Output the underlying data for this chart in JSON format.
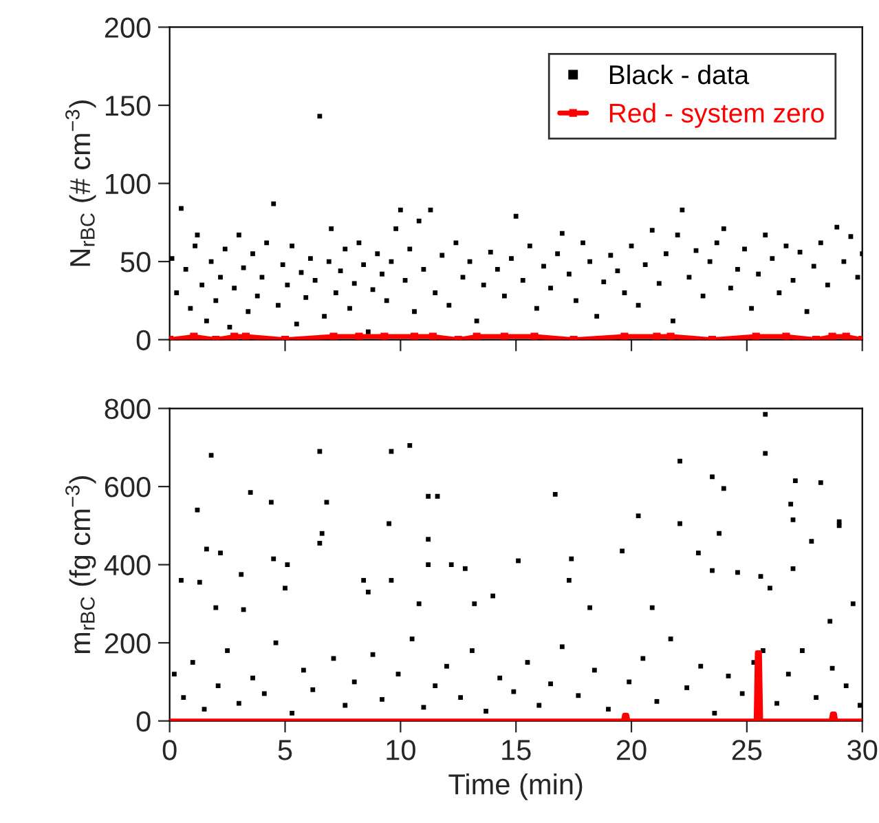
{
  "chart_data": [
    {
      "type": "scatter",
      "ylabel": "N$_{rBC}$ (# cm$^{−3}$)",
      "xlim": [
        0,
        30
      ],
      "xticks": [
        0,
        5,
        10,
        15,
        20,
        25,
        30
      ],
      "ylim": [
        0,
        200
      ],
      "yticks": [
        0,
        50,
        100,
        150,
        200
      ],
      "tick_labels": "y",
      "legend": "top right",
      "series": [
        {
          "name": "Black - data",
          "color": "#000000",
          "marker": "square",
          "x": [
            0.1,
            0.3,
            0.5,
            0.7,
            0.9,
            1.1,
            1.2,
            1.4,
            1.6,
            1.8,
            2.0,
            2.2,
            2.4,
            2.6,
            2.8,
            3.0,
            3.2,
            3.4,
            3.6,
            3.8,
            4.0,
            4.2,
            4.5,
            4.7,
            4.9,
            5.1,
            5.3,
            5.5,
            5.7,
            5.9,
            6.1,
            6.3,
            6.5,
            6.7,
            6.9,
            7.0,
            7.2,
            7.4,
            7.6,
            7.8,
            8.0,
            8.2,
            8.4,
            8.6,
            8.8,
            9.0,
            9.2,
            9.4,
            9.6,
            9.8,
            10.0,
            10.2,
            10.4,
            10.6,
            10.8,
            11.0,
            11.3,
            11.5,
            11.8,
            12.1,
            12.4,
            12.7,
            13.0,
            13.3,
            13.6,
            13.9,
            14.2,
            14.5,
            14.8,
            15.0,
            15.3,
            15.6,
            15.9,
            16.2,
            16.5,
            16.8,
            17.0,
            17.3,
            17.6,
            17.9,
            18.2,
            18.5,
            18.8,
            19.1,
            19.4,
            19.7,
            20.0,
            20.3,
            20.6,
            20.9,
            21.2,
            21.5,
            21.8,
            22.0,
            22.2,
            22.5,
            22.8,
            23.1,
            23.4,
            23.7,
            24.0,
            24.3,
            24.6,
            24.9,
            25.2,
            25.5,
            25.8,
            26.1,
            26.4,
            26.7,
            27.0,
            27.3,
            27.6,
            27.9,
            28.2,
            28.5,
            28.9,
            29.2,
            29.5,
            29.8,
            30.0
          ],
          "values": [
            52,
            30,
            84,
            45,
            20,
            60,
            67,
            35,
            12,
            50,
            25,
            40,
            58,
            8,
            33,
            67,
            46,
            18,
            55,
            28,
            40,
            62,
            87,
            22,
            48,
            35,
            60,
            10,
            43,
            27,
            52,
            38,
            143,
            15,
            50,
            71,
            30,
            44,
            58,
            20,
            36,
            62,
            48,
            5,
            32,
            55,
            42,
            25,
            50,
            71,
            83,
            38,
            58,
            18,
            76,
            45,
            83,
            30,
            54,
            22,
            62,
            40,
            50,
            12,
            35,
            56,
            45,
            28,
            52,
            79,
            38,
            60,
            20,
            47,
            33,
            55,
            68,
            42,
            25,
            62,
            50,
            15,
            37,
            54,
            44,
            30,
            60,
            22,
            48,
            70,
            36,
            55,
            12,
            67,
            83,
            40,
            57,
            28,
            50,
            62,
            71,
            33,
            45,
            58,
            20,
            42,
            67,
            52,
            30,
            60,
            38,
            56,
            18,
            47,
            62,
            35,
            72,
            50,
            66,
            40,
            55
          ]
        },
        {
          "name": "Red - system zero",
          "color": "#ff0000",
          "type": "line",
          "marker": "square",
          "line_style": "solid",
          "x": [
            0,
            1.05,
            2.0,
            2.8,
            3.3,
            5.0,
            7.1,
            8.2,
            9.3,
            10.6,
            11.4,
            12.5,
            13.3,
            14.5,
            15.8,
            17.5,
            19.7,
            21.1,
            21.7,
            23.5,
            25.4,
            26.7,
            28.0,
            28.7,
            29.3,
            30
          ],
          "values": [
            0,
            2,
            0,
            2,
            2,
            0,
            2,
            2,
            2,
            2,
            2,
            0,
            2,
            2,
            2,
            0,
            2,
            2,
            2,
            0,
            2,
            2,
            0,
            2,
            2,
            0
          ]
        }
      ]
    },
    {
      "type": "scatter",
      "ylabel": "m$_{rBC}$ (fg cm$^{−3}$)",
      "xlabel": "Time (min)",
      "xlim": [
        0,
        30
      ],
      "xticks": [
        0,
        5,
        10,
        15,
        20,
        25,
        30
      ],
      "ylim": [
        0,
        800
      ],
      "yticks": [
        0,
        200,
        400,
        600,
        800
      ],
      "series": [
        {
          "color": "#000000",
          "marker": "square",
          "x": [
            1.8,
            1.2,
            1.6,
            2.2,
            3.5,
            3.1,
            4.4,
            4.5,
            5.1,
            6.5,
            6.8,
            6.6,
            6.5,
            9.6,
            10.4,
            9.5,
            9.6,
            11.2,
            11.6,
            11.2,
            11.2,
            12.2,
            12.8,
            15.1,
            16.7,
            17.4,
            19.6,
            20.3,
            22.1,
            22.1,
            23.5,
            24.0,
            23.8,
            22.9,
            25.8,
            25.8,
            26.9,
            27.1,
            27.0,
            28.2,
            27.8,
            29.0,
            29.0,
            0.5,
            1.3,
            2.0,
            3.2,
            5.0,
            8.4,
            8.6,
            14.0,
            17.3,
            18.2,
            20.9,
            23.5,
            24.6,
            25.6,
            26.0,
            27.0,
            28.6,
            29.6,
            25.7,
            10.8,
            13.2,
            0.2,
            0.6,
            1.0,
            1.5,
            2.1,
            2.5,
            3.0,
            3.6,
            4.1,
            4.6,
            5.3,
            5.8,
            6.2,
            7.1,
            7.6,
            8.0,
            8.8,
            9.2,
            9.9,
            10.5,
            11.0,
            11.5,
            12.0,
            12.6,
            13.1,
            13.7,
            14.3,
            14.9,
            15.5,
            16.0,
            16.5,
            17.0,
            17.7,
            18.4,
            19.0,
            19.9,
            20.5,
            21.1,
            21.7,
            22.4,
            23.0,
            23.6,
            24.2,
            24.8,
            25.3,
            26.3,
            26.8,
            27.4,
            28.0,
            28.7,
            29.3,
            29.9
          ],
          "values": [
            680,
            540,
            440,
            430,
            585,
            375,
            560,
            415,
            400,
            690,
            560,
            480,
            455,
            690,
            705,
            505,
            360,
            575,
            575,
            465,
            400,
            400,
            390,
            410,
            580,
            415,
            435,
            525,
            665,
            505,
            625,
            595,
            480,
            430,
            785,
            685,
            555,
            615,
            515,
            610,
            460,
            510,
            500,
            360,
            355,
            290,
            285,
            340,
            360,
            330,
            320,
            360,
            290,
            290,
            385,
            380,
            370,
            340,
            390,
            255,
            300,
            180,
            300,
            300,
            120,
            60,
            150,
            30,
            90,
            180,
            45,
            110,
            70,
            200,
            20,
            130,
            80,
            160,
            40,
            100,
            170,
            55,
            120,
            210,
            35,
            90,
            140,
            60,
            180,
            25,
            110,
            75,
            150,
            40,
            95,
            190,
            65,
            130,
            30,
            100,
            160,
            50,
            210,
            85,
            140,
            20,
            115,
            70,
            150,
            45,
            120,
            180,
            60,
            135,
            90,
            40
          ]
        },
        {
          "color": "#ff0000",
          "type": "line",
          "line_style": "solid",
          "x": [
            0,
            19.65,
            19.7,
            19.8,
            19.85,
            25.4,
            25.45,
            25.55,
            25.6,
            28.65,
            28.7,
            28.8,
            28.85,
            30
          ],
          "values": [
            0,
            0,
            15,
            15,
            0,
            0,
            175,
            175,
            0,
            0,
            18,
            18,
            0,
            0
          ]
        }
      ]
    }
  ]
}
